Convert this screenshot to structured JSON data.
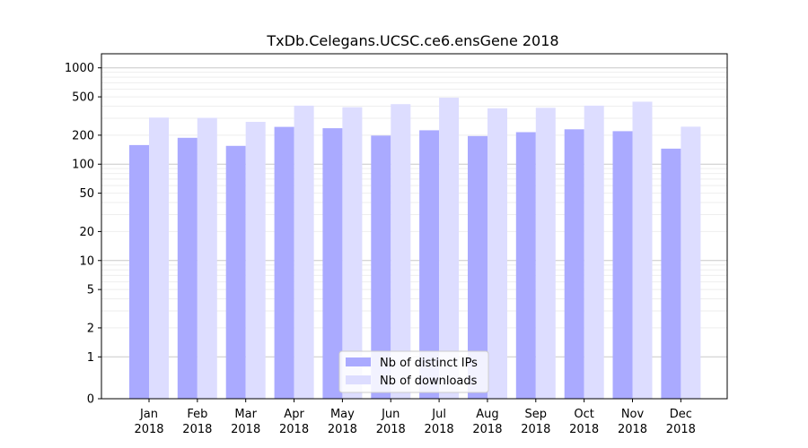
{
  "chart_data": {
    "type": "bar",
    "title": "TxDb.Celegans.UCSC.ce6.ensGene 2018",
    "xlabel": "",
    "ylabel": "",
    "y_scale": "symlog",
    "y_ticks": [
      0,
      1,
      2,
      5,
      10,
      20,
      50,
      100,
      200,
      500,
      1000
    ],
    "y_tick_labels": [
      "0",
      "1",
      "2",
      "5",
      "10",
      "20",
      "50",
      "100",
      "200",
      "500",
      "1000"
    ],
    "ylim": [
      0,
      1400
    ],
    "grid": true,
    "legend_position": "bottom-center",
    "categories": [
      [
        "Jan",
        "2018"
      ],
      [
        "Feb",
        "2018"
      ],
      [
        "Mar",
        "2018"
      ],
      [
        "Apr",
        "2018"
      ],
      [
        "May",
        "2018"
      ],
      [
        "Jun",
        "2018"
      ],
      [
        "Jul",
        "2018"
      ],
      [
        "Aug",
        "2018"
      ],
      [
        "Sep",
        "2018"
      ],
      [
        "Oct",
        "2018"
      ],
      [
        "Nov",
        "2018"
      ],
      [
        "Dec",
        "2018"
      ]
    ],
    "series": [
      {
        "name": "Nb of distinct IPs",
        "color": "#aaaaff",
        "values": [
          158,
          188,
          155,
          244,
          236,
          198,
          225,
          196,
          215,
          230,
          220,
          145
        ]
      },
      {
        "name": "Nb of downloads",
        "color": "#ddddff",
        "values": [
          305,
          303,
          275,
          405,
          390,
          420,
          490,
          380,
          385,
          405,
          445,
          245
        ]
      }
    ]
  }
}
